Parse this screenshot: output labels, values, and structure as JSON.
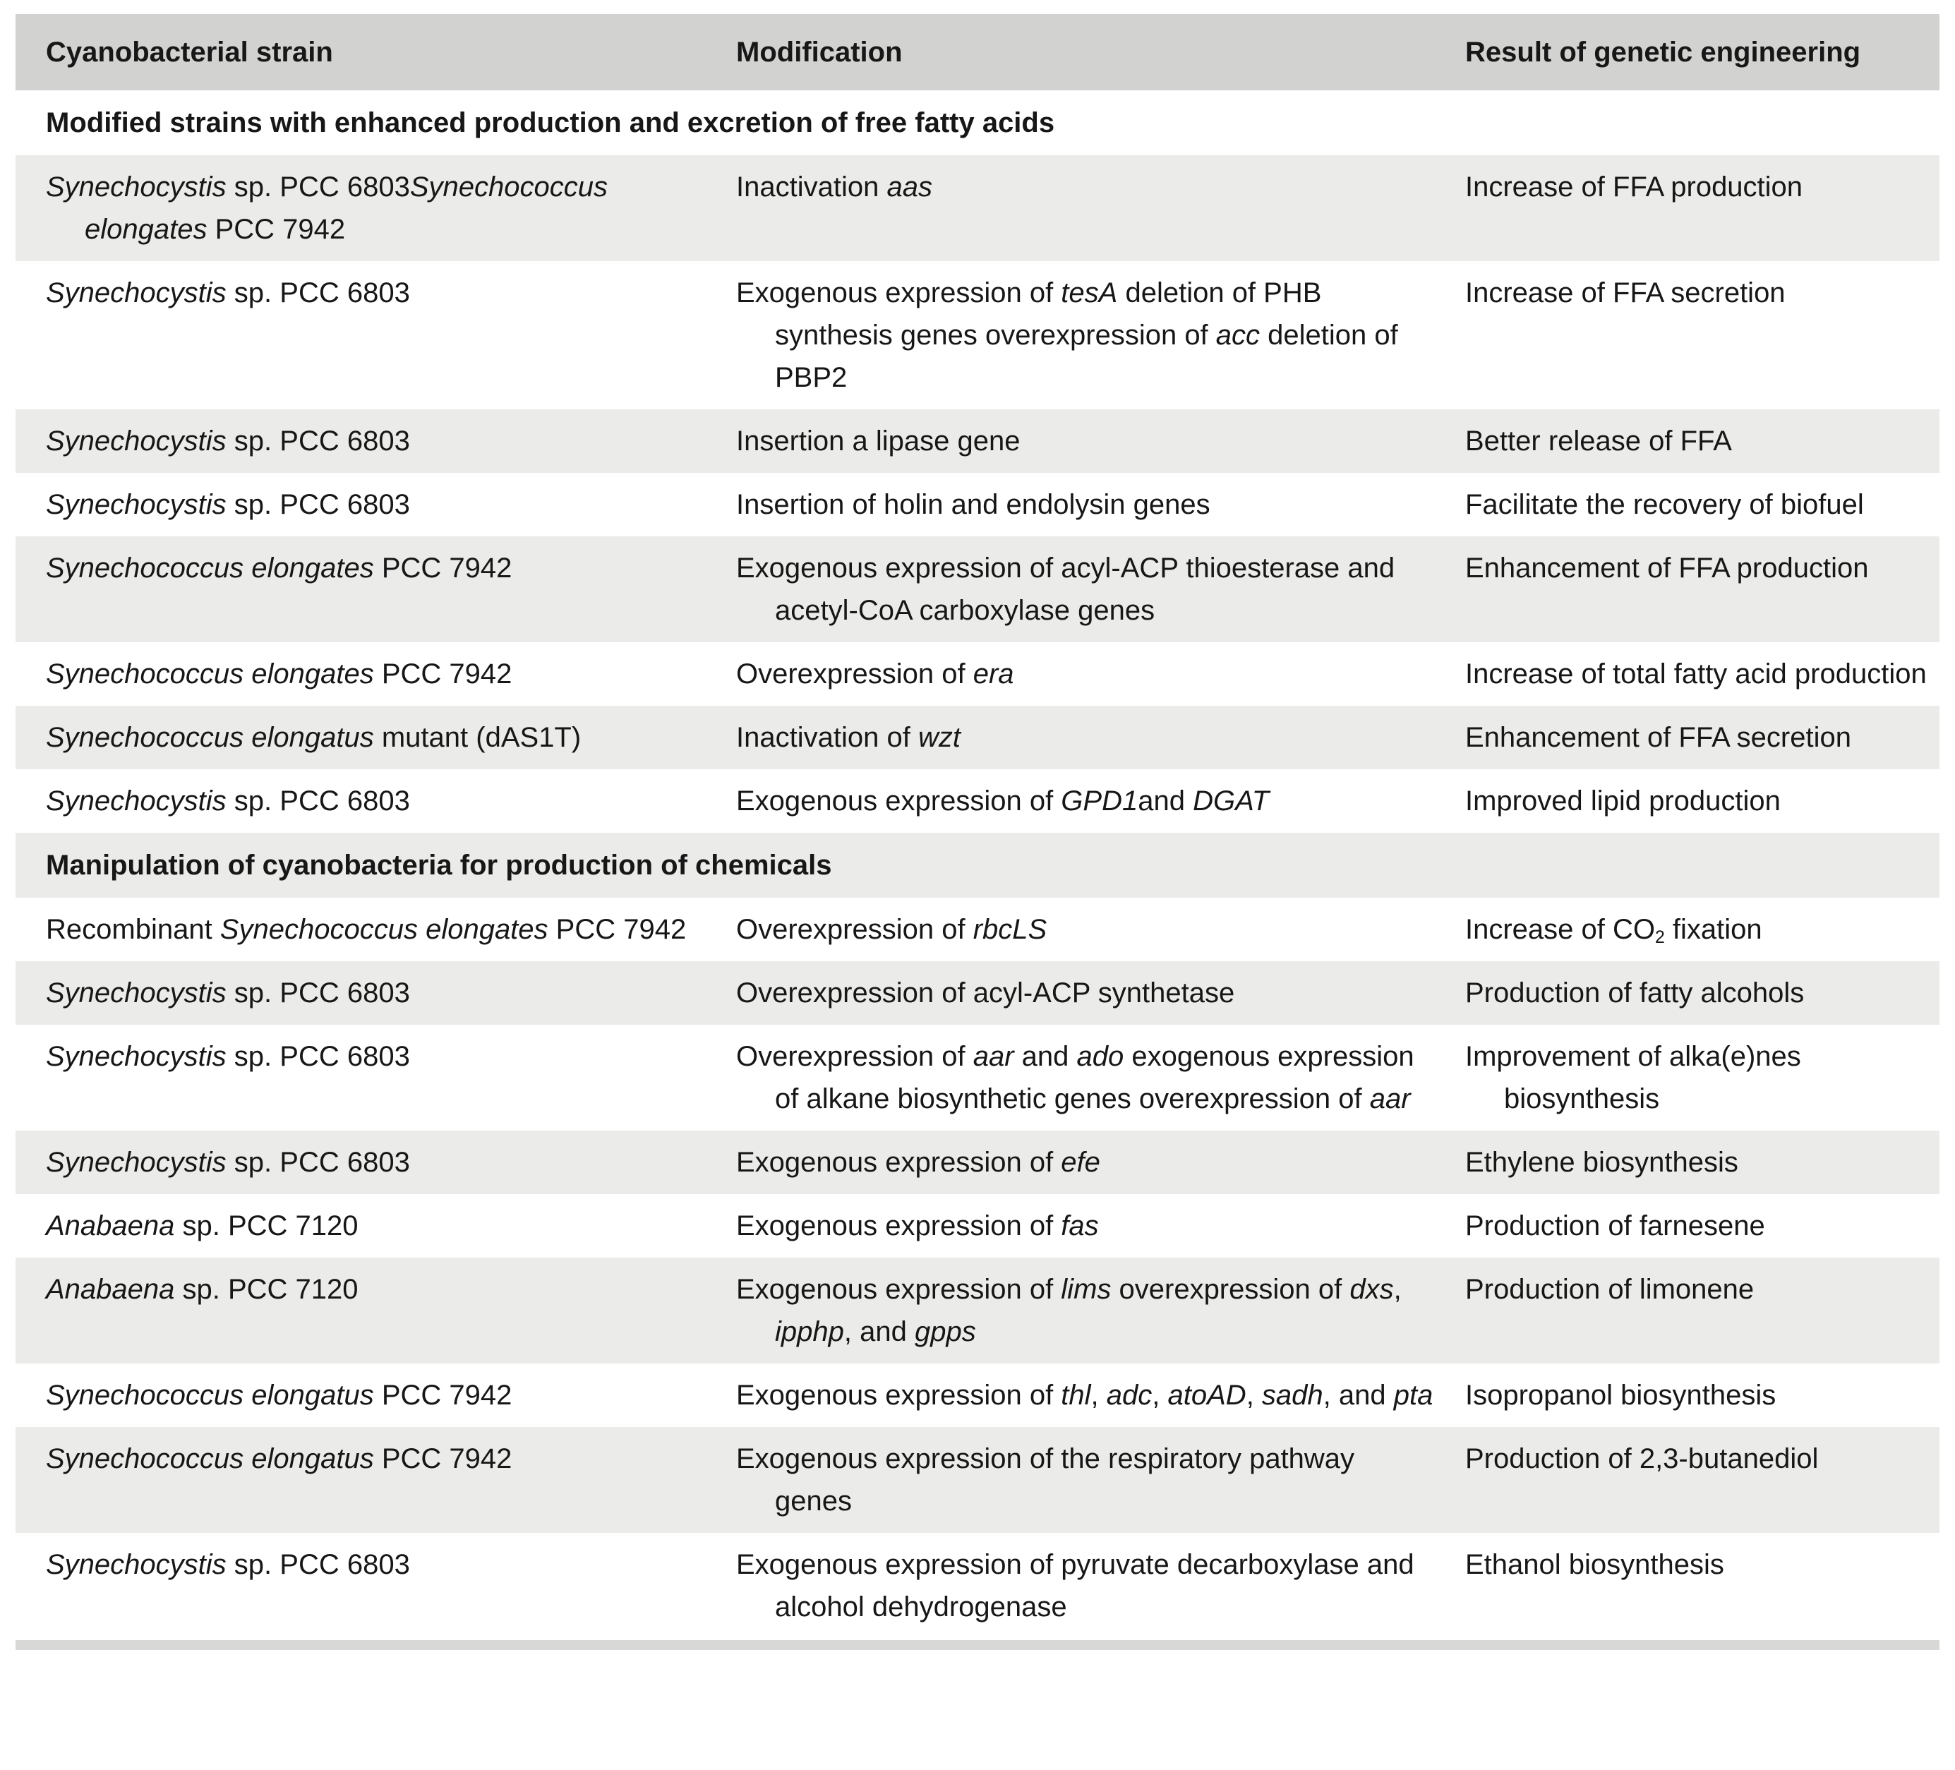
{
  "colors": {
    "header_bg": "#d2d2d0",
    "row_gray": "#ebebe9",
    "row_white": "#ffffff",
    "bottom_bar": "#d8d8d6",
    "text": "#171717"
  },
  "table": {
    "columns": [
      {
        "label": "Cyanobacterial strain"
      },
      {
        "label": "Modification"
      },
      {
        "label": "Result of genetic engineering"
      }
    ],
    "rows": [
      {
        "kind": "section",
        "text": "Modified strains with enhanced production and excretion of free fatty acids"
      },
      {
        "kind": "data",
        "strain": [
          {
            "t": "Synechocystis",
            "i": true
          },
          {
            "t": " sp. PCC 6803"
          },
          {
            "t": "Synechococcus",
            "i": true
          },
          {
            "t": " "
          },
          {
            "t": "elongates",
            "i": true
          },
          {
            "t": " PCC 7942"
          }
        ],
        "modification": [
          {
            "t": "Inactivation "
          },
          {
            "t": "aas",
            "i": true
          }
        ],
        "result": [
          {
            "t": "Increase of FFA production"
          }
        ]
      },
      {
        "kind": "data",
        "strain": [
          {
            "t": "Synechocystis",
            "i": true
          },
          {
            "t": " sp. PCC 6803"
          }
        ],
        "modification": [
          {
            "t": "Exogenous expression of "
          },
          {
            "t": "tesA",
            "i": true
          },
          {
            "t": " deletion of PHB synthesis genes overexpression of "
          },
          {
            "t": "acc",
            "i": true
          },
          {
            "t": " deletion of PBP2"
          }
        ],
        "result": [
          {
            "t": "Increase of FFA secretion"
          }
        ]
      },
      {
        "kind": "data",
        "strain": [
          {
            "t": "Synechocystis",
            "i": true
          },
          {
            "t": " sp. PCC 6803"
          }
        ],
        "modification": [
          {
            "t": "Insertion a lipase gene"
          }
        ],
        "result": [
          {
            "t": "Better release of FFA"
          }
        ]
      },
      {
        "kind": "data",
        "strain": [
          {
            "t": "Synechocystis",
            "i": true
          },
          {
            "t": " sp. PCC 6803"
          }
        ],
        "modification": [
          {
            "t": "Insertion of holin and endolysin genes"
          }
        ],
        "result": [
          {
            "t": "Facilitate the recovery of biofuel"
          }
        ]
      },
      {
        "kind": "data",
        "strain": [
          {
            "t": "Synechococcus elongates",
            "i": true
          },
          {
            "t": " PCC 7942"
          }
        ],
        "modification": [
          {
            "t": "Exogenous expression of acyl-ACP thioesterase and acetyl-CoA carboxylase genes"
          }
        ],
        "result": [
          {
            "t": "Enhancement of FFA production"
          }
        ]
      },
      {
        "kind": "data",
        "strain": [
          {
            "t": "Synechococcus elongates",
            "i": true
          },
          {
            "t": " PCC 7942"
          }
        ],
        "modification": [
          {
            "t": "Overexpression of "
          },
          {
            "t": "era",
            "i": true
          }
        ],
        "result": [
          {
            "t": "Increase of total fatty acid production"
          }
        ]
      },
      {
        "kind": "data",
        "strain": [
          {
            "t": "Synechococcus elongatus",
            "i": true
          },
          {
            "t": " mutant (dAS1T)"
          }
        ],
        "modification": [
          {
            "t": "Inactivation of "
          },
          {
            "t": "wzt",
            "i": true
          }
        ],
        "result": [
          {
            "t": "Enhancement of FFA secretion"
          }
        ]
      },
      {
        "kind": "data",
        "strain": [
          {
            "t": "Synechocystis",
            "i": true
          },
          {
            "t": " sp. PCC 6803"
          }
        ],
        "modification": [
          {
            "t": "Exogenous expression of "
          },
          {
            "t": "GPD1",
            "i": true
          },
          {
            "t": "and "
          },
          {
            "t": "DGAT",
            "i": true
          }
        ],
        "result": [
          {
            "t": "Improved lipid production"
          }
        ]
      },
      {
        "kind": "section",
        "text": "Manipulation of cyanobacteria for production of chemicals"
      },
      {
        "kind": "data",
        "strain": [
          {
            "t": "Recombinant "
          },
          {
            "t": "Synechococcus elongates",
            "i": true
          },
          {
            "t": " PCC 7942"
          }
        ],
        "modification": [
          {
            "t": "Overexpression of "
          },
          {
            "t": "rbcLS",
            "i": true
          }
        ],
        "result": [
          {
            "t": "Increase of CO"
          },
          {
            "t": "2",
            "sub": true
          },
          {
            "t": " fixation"
          }
        ]
      },
      {
        "kind": "data",
        "strain": [
          {
            "t": "Synechocystis",
            "i": true
          },
          {
            "t": " sp. PCC 6803"
          }
        ],
        "modification": [
          {
            "t": "Overexpression of acyl-ACP synthetase"
          }
        ],
        "result": [
          {
            "t": "Production of fatty alcohols"
          }
        ]
      },
      {
        "kind": "data",
        "strain": [
          {
            "t": "Synechocystis",
            "i": true
          },
          {
            "t": " sp. PCC 6803"
          }
        ],
        "modification": [
          {
            "t": "Overexpression of "
          },
          {
            "t": "aar",
            "i": true
          },
          {
            "t": " and "
          },
          {
            "t": "ado",
            "i": true
          },
          {
            "t": " exogenous expression of alkane biosynthetic genes overexpression of "
          },
          {
            "t": "aar",
            "i": true
          }
        ],
        "result": [
          {
            "t": "Improvement of alka(e)nes biosynthesis"
          }
        ]
      },
      {
        "kind": "data",
        "strain": [
          {
            "t": "Synechocystis",
            "i": true
          },
          {
            "t": " sp. PCC 6803"
          }
        ],
        "modification": [
          {
            "t": "Exogenous expression of "
          },
          {
            "t": "efe",
            "i": true
          }
        ],
        "result": [
          {
            "t": "Ethylene biosynthesis"
          }
        ]
      },
      {
        "kind": "data",
        "strain": [
          {
            "t": "Anabaena",
            "i": true
          },
          {
            "t": " sp. PCC 7120"
          }
        ],
        "modification": [
          {
            "t": "Exogenous expression of "
          },
          {
            "t": "fas",
            "i": true
          }
        ],
        "result": [
          {
            "t": "Production of farnesene"
          }
        ]
      },
      {
        "kind": "data",
        "strain": [
          {
            "t": "Anabaena",
            "i": true
          },
          {
            "t": " sp. PCC 7120"
          }
        ],
        "modification": [
          {
            "t": "Exogenous expression of "
          },
          {
            "t": "lims",
            "i": true
          },
          {
            "t": " overexpression of "
          },
          {
            "t": "dxs",
            "i": true
          },
          {
            "t": ", "
          },
          {
            "t": "ipphp",
            "i": true
          },
          {
            "t": ", and "
          },
          {
            "t": "gpps",
            "i": true
          }
        ],
        "result": [
          {
            "t": "Production of limonene"
          }
        ]
      },
      {
        "kind": "data",
        "strain": [
          {
            "t": "Synechococcus elongatus",
            "i": true
          },
          {
            "t": " PCC 7942"
          }
        ],
        "modification": [
          {
            "t": "Exogenous expression of "
          },
          {
            "t": "thl",
            "i": true
          },
          {
            "t": ", "
          },
          {
            "t": "adc",
            "i": true
          },
          {
            "t": ", "
          },
          {
            "t": "atoAD",
            "i": true
          },
          {
            "t": ", "
          },
          {
            "t": "sadh",
            "i": true
          },
          {
            "t": ", and "
          },
          {
            "t": "pta",
            "i": true
          }
        ],
        "result": [
          {
            "t": "Isopropanol biosynthesis"
          }
        ]
      },
      {
        "kind": "data",
        "strain": [
          {
            "t": "Synechococcus elongatus",
            "i": true
          },
          {
            "t": " PCC 7942"
          }
        ],
        "modification": [
          {
            "t": "Exogenous expression of the respiratory pathway genes"
          }
        ],
        "result": [
          {
            "t": "Production of 2,3-butanediol"
          }
        ]
      },
      {
        "kind": "data",
        "strain": [
          {
            "t": "Synechocystis",
            "i": true
          },
          {
            "t": " sp. PCC 6803"
          }
        ],
        "modification": [
          {
            "t": "Exogenous expression of pyruvate decarboxylase and alcohol dehydrogenase"
          }
        ],
        "result": [
          {
            "t": "Ethanol biosynthesis"
          }
        ]
      }
    ]
  }
}
